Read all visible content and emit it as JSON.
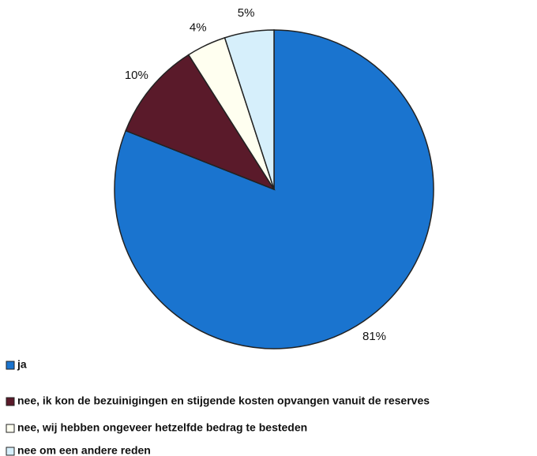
{
  "chart_data": {
    "type": "pie",
    "categories": [
      "ja",
      "nee, ik kon de bezuinigingen en stijgende kosten opvangen vanuit de reserves",
      "nee, wij hebben ongeveer hetzelfde bedrag te besteden",
      "nee om een andere reden"
    ],
    "values": [
      81,
      10,
      4,
      5
    ],
    "value_labels": [
      "81%",
      "10%",
      "4%",
      "5%"
    ],
    "colors": [
      "#1a74cf",
      "#5a1a2a",
      "#fffff0",
      "#d6effb"
    ],
    "legend": "bottom-left"
  }
}
